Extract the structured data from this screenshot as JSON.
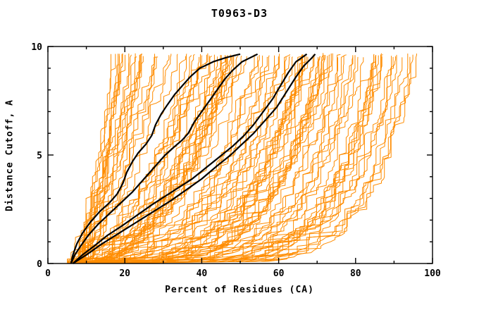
{
  "chart_data": {
    "type": "line",
    "title": "T0963-D3",
    "xlabel": "Percent of Residues (CA)",
    "ylabel": "Distance Cutoff, A",
    "xlim": [
      0,
      100
    ],
    "ylim": [
      0,
      10
    ],
    "x_major_ticks": [
      0,
      20,
      40,
      60,
      80,
      100
    ],
    "x_tick_labels": [
      "0",
      "20",
      "40",
      "60",
      "80",
      "100"
    ],
    "x_minor_step": 10,
    "y_major_ticks": [
      0,
      5,
      10
    ],
    "y_tick_labels": [
      "0",
      "5",
      "10"
    ],
    "y_minor_step": 1,
    "grid": false,
    "legend": "none",
    "frame": "box-with-mirrored-inward-ticks",
    "colors": {
      "ensemble": "#ff8c00",
      "highlight": "#000000",
      "axes": "#000000"
    },
    "series": [
      {
        "name": "highlighted-model-1",
        "color": "#000000",
        "width": 2.2,
        "points": [
          [
            6,
            0
          ],
          [
            6.5,
            0.4
          ],
          [
            7.5,
            0.9
          ],
          [
            9,
            1.4
          ],
          [
            11,
            1.9
          ],
          [
            13.5,
            2.4
          ],
          [
            16,
            2.8
          ],
          [
            18,
            3.2
          ],
          [
            19.5,
            3.7
          ],
          [
            20.5,
            4.2
          ],
          [
            22,
            4.7
          ],
          [
            23.5,
            5.1
          ],
          [
            25.5,
            5.5
          ],
          [
            27,
            5.9
          ],
          [
            28,
            6.4
          ],
          [
            29.5,
            6.9
          ],
          [
            31,
            7.3
          ],
          [
            33,
            7.8
          ],
          [
            35,
            8.2
          ],
          [
            37,
            8.6
          ],
          [
            39.5,
            9.0
          ],
          [
            43,
            9.3
          ],
          [
            46.5,
            9.5
          ],
          [
            50,
            9.65
          ]
        ]
      },
      {
        "name": "highlighted-model-2",
        "color": "#000000",
        "width": 2.2,
        "points": [
          [
            6,
            0
          ],
          [
            7,
            0.4
          ],
          [
            8.5,
            0.8
          ],
          [
            10.5,
            1.3
          ],
          [
            13,
            1.8
          ],
          [
            16,
            2.3
          ],
          [
            19,
            2.8
          ],
          [
            22,
            3.3
          ],
          [
            25,
            3.9
          ],
          [
            28,
            4.5
          ],
          [
            30.5,
            5.0
          ],
          [
            33,
            5.4
          ],
          [
            35,
            5.7
          ],
          [
            36.5,
            6.0
          ],
          [
            38,
            6.5
          ],
          [
            40,
            7.0
          ],
          [
            42,
            7.5
          ],
          [
            44,
            8.0
          ],
          [
            46,
            8.5
          ],
          [
            48,
            8.9
          ],
          [
            50.5,
            9.3
          ],
          [
            54.5,
            9.65
          ]
        ]
      },
      {
        "name": "highlighted-model-3",
        "color": "#000000",
        "width": 2.2,
        "points": [
          [
            6.5,
            0
          ],
          [
            9,
            0.4
          ],
          [
            12,
            0.8
          ],
          [
            15.5,
            1.3
          ],
          [
            19,
            1.7
          ],
          [
            23,
            2.2
          ],
          [
            27,
            2.7
          ],
          [
            30.5,
            3.1
          ],
          [
            34,
            3.5
          ],
          [
            37.5,
            3.9
          ],
          [
            41,
            4.4
          ],
          [
            44.5,
            4.9
          ],
          [
            48,
            5.4
          ],
          [
            51,
            5.9
          ],
          [
            53.5,
            6.4
          ],
          [
            56,
            7.0
          ],
          [
            58.5,
            7.6
          ],
          [
            60.5,
            8.2
          ],
          [
            62.5,
            8.8
          ],
          [
            64.5,
            9.3
          ],
          [
            67.3,
            9.65
          ]
        ]
      },
      {
        "name": "highlighted-model-4",
        "color": "#000000",
        "width": 2.2,
        "points": [
          [
            6.5,
            0
          ],
          [
            10,
            0.4
          ],
          [
            14,
            0.9
          ],
          [
            18.5,
            1.4
          ],
          [
            23,
            1.9
          ],
          [
            27.5,
            2.4
          ],
          [
            32,
            2.9
          ],
          [
            36,
            3.4
          ],
          [
            40,
            3.9
          ],
          [
            44,
            4.5
          ],
          [
            47.5,
            5.0
          ],
          [
            50.5,
            5.5
          ],
          [
            53.5,
            6.0
          ],
          [
            56.5,
            6.6
          ],
          [
            59.5,
            7.2
          ],
          [
            62,
            7.9
          ],
          [
            64.5,
            8.6
          ],
          [
            66.5,
            9.1
          ],
          [
            68.5,
            9.45
          ],
          [
            69.5,
            9.65
          ]
        ]
      }
    ],
    "ensemble": {
      "name": "all-predicted-models",
      "description": "Dense fan of ~115 monotone staircase curves; all start near 5-8.5% at 0 A and terminate near 9.6 A at percents spread from ~16% to 100%; curves with larger terminal percent run flat along the bottom before climbing.",
      "color": "#ff8c00",
      "width": 1,
      "count": 115,
      "seed": 42,
      "start_pct_range": [
        5.0,
        8.5
      ],
      "top_pct_range": [
        16,
        100
      ],
      "y_end_range": [
        9.5,
        9.7
      ],
      "y_step": 0.1
    }
  }
}
